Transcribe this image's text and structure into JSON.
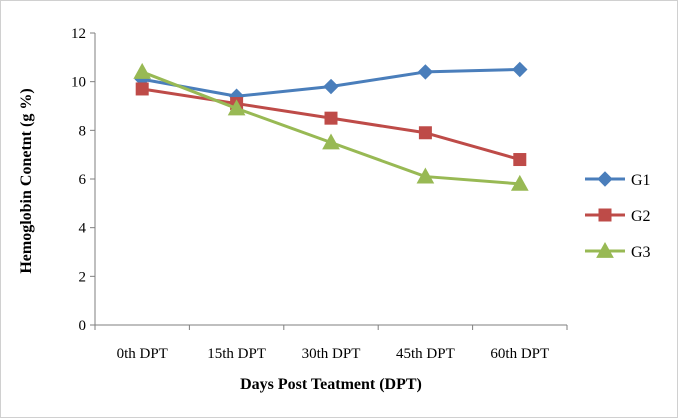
{
  "chart_data": {
    "type": "line",
    "categories": [
      "0th DPT",
      "15th DPT",
      "30th DPT",
      "45th DPT",
      "60th DPT"
    ],
    "series": [
      {
        "name": "G1",
        "values": [
          10.1,
          9.4,
          9.8,
          10.4,
          10.5
        ],
        "color": "#4a7ebb",
        "marker": "diamond"
      },
      {
        "name": "G2",
        "values": [
          9.7,
          9.1,
          8.5,
          7.9,
          6.8
        ],
        "color": "#be4b48",
        "marker": "square"
      },
      {
        "name": "G3",
        "values": [
          10.4,
          8.9,
          7.5,
          6.1,
          5.8
        ],
        "color": "#98b954",
        "marker": "triangle"
      }
    ],
    "xlabel": "Days Post Teatment (DPT)",
    "ylabel": "Hemoglobin Conetnt (g %)",
    "ylim": [
      0,
      12
    ],
    "yticks": [
      0,
      2,
      4,
      6,
      8,
      10,
      12
    ],
    "grid": false,
    "legend_position": "right"
  }
}
